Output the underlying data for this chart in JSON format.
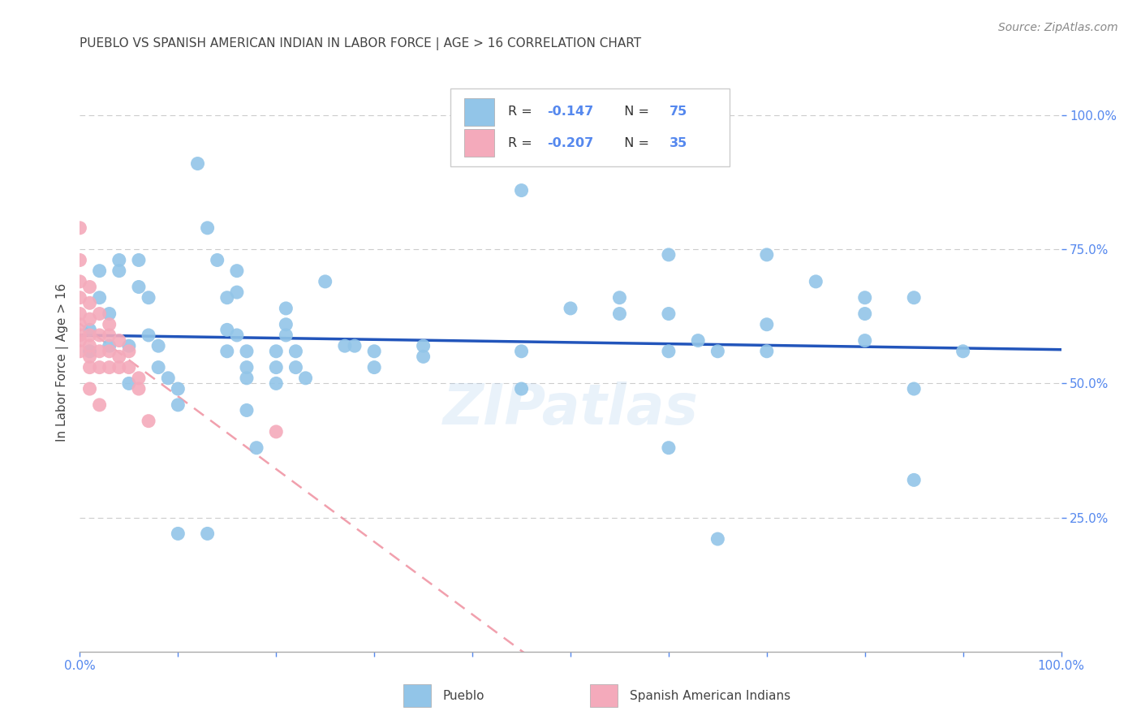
{
  "title": "PUEBLO VS SPANISH AMERICAN INDIAN IN LABOR FORCE | AGE > 16 CORRELATION CHART",
  "source": "Source: ZipAtlas.com",
  "ylabel": "In Labor Force | Age > 16",
  "watermark": "ZIPatlas",
  "y_tick_labels_right": [
    "100.0%",
    "75.0%",
    "50.0%",
    "25.0%"
  ],
  "y_tick_vals": [
    1.0,
    0.75,
    0.5,
    0.25
  ],
  "xlim": [
    0.0,
    1.0
  ],
  "ylim": [
    0.0,
    1.08
  ],
  "blue_color": "#92C5E8",
  "pink_color": "#F4AABB",
  "line_blue": "#2255BB",
  "line_pink": "#EE8899",
  "legend_label_blue": "Pueblo",
  "legend_label_pink": "Spanish American Indians",
  "R_blue": -0.147,
  "N_blue": 75,
  "R_pink": -0.207,
  "N_pink": 35,
  "blue_points": [
    [
      0.01,
      0.6
    ],
    [
      0.01,
      0.56
    ],
    [
      0.02,
      0.66
    ],
    [
      0.02,
      0.71
    ],
    [
      0.03,
      0.63
    ],
    [
      0.03,
      0.57
    ],
    [
      0.04,
      0.73
    ],
    [
      0.04,
      0.71
    ],
    [
      0.05,
      0.5
    ],
    [
      0.05,
      0.57
    ],
    [
      0.06,
      0.73
    ],
    [
      0.06,
      0.68
    ],
    [
      0.07,
      0.66
    ],
    [
      0.07,
      0.59
    ],
    [
      0.08,
      0.57
    ],
    [
      0.08,
      0.53
    ],
    [
      0.09,
      0.51
    ],
    [
      0.1,
      0.49
    ],
    [
      0.1,
      0.46
    ],
    [
      0.1,
      0.22
    ],
    [
      0.12,
      0.91
    ],
    [
      0.13,
      0.79
    ],
    [
      0.14,
      0.73
    ],
    [
      0.15,
      0.66
    ],
    [
      0.15,
      0.6
    ],
    [
      0.15,
      0.56
    ],
    [
      0.16,
      0.71
    ],
    [
      0.16,
      0.67
    ],
    [
      0.16,
      0.59
    ],
    [
      0.17,
      0.56
    ],
    [
      0.17,
      0.53
    ],
    [
      0.17,
      0.51
    ],
    [
      0.17,
      0.45
    ],
    [
      0.18,
      0.38
    ],
    [
      0.2,
      0.56
    ],
    [
      0.2,
      0.53
    ],
    [
      0.2,
      0.5
    ],
    [
      0.21,
      0.64
    ],
    [
      0.21,
      0.61
    ],
    [
      0.21,
      0.59
    ],
    [
      0.22,
      0.56
    ],
    [
      0.22,
      0.53
    ],
    [
      0.23,
      0.51
    ],
    [
      0.25,
      0.69
    ],
    [
      0.27,
      0.57
    ],
    [
      0.28,
      0.57
    ],
    [
      0.3,
      0.56
    ],
    [
      0.3,
      0.53
    ],
    [
      0.35,
      0.57
    ],
    [
      0.35,
      0.55
    ],
    [
      0.45,
      0.86
    ],
    [
      0.45,
      0.56
    ],
    [
      0.45,
      0.49
    ],
    [
      0.5,
      0.64
    ],
    [
      0.55,
      0.66
    ],
    [
      0.55,
      0.63
    ],
    [
      0.6,
      0.74
    ],
    [
      0.6,
      0.63
    ],
    [
      0.6,
      0.56
    ],
    [
      0.63,
      0.58
    ],
    [
      0.65,
      0.56
    ],
    [
      0.7,
      0.74
    ],
    [
      0.7,
      0.61
    ],
    [
      0.7,
      0.56
    ],
    [
      0.75,
      0.69
    ],
    [
      0.8,
      0.66
    ],
    [
      0.8,
      0.63
    ],
    [
      0.8,
      0.58
    ],
    [
      0.85,
      0.66
    ],
    [
      0.85,
      0.49
    ],
    [
      0.9,
      0.56
    ],
    [
      0.85,
      0.32
    ],
    [
      0.6,
      0.38
    ],
    [
      0.65,
      0.21
    ],
    [
      0.13,
      0.22
    ]
  ],
  "pink_points": [
    [
      0.0,
      0.79
    ],
    [
      0.0,
      0.73
    ],
    [
      0.0,
      0.69
    ],
    [
      0.0,
      0.66
    ],
    [
      0.0,
      0.63
    ],
    [
      0.0,
      0.61
    ],
    [
      0.0,
      0.59
    ],
    [
      0.0,
      0.58
    ],
    [
      0.0,
      0.56
    ],
    [
      0.01,
      0.68
    ],
    [
      0.01,
      0.65
    ],
    [
      0.01,
      0.62
    ],
    [
      0.01,
      0.59
    ],
    [
      0.01,
      0.57
    ],
    [
      0.01,
      0.55
    ],
    [
      0.01,
      0.53
    ],
    [
      0.01,
      0.49
    ],
    [
      0.02,
      0.63
    ],
    [
      0.02,
      0.59
    ],
    [
      0.02,
      0.56
    ],
    [
      0.02,
      0.53
    ],
    [
      0.02,
      0.46
    ],
    [
      0.03,
      0.61
    ],
    [
      0.03,
      0.59
    ],
    [
      0.03,
      0.56
    ],
    [
      0.03,
      0.53
    ],
    [
      0.04,
      0.58
    ],
    [
      0.04,
      0.55
    ],
    [
      0.04,
      0.53
    ],
    [
      0.05,
      0.56
    ],
    [
      0.05,
      0.53
    ],
    [
      0.06,
      0.51
    ],
    [
      0.06,
      0.49
    ],
    [
      0.07,
      0.43
    ],
    [
      0.2,
      0.41
    ]
  ],
  "title_fontsize": 11,
  "source_fontsize": 10,
  "axis_label_fontsize": 11,
  "tick_fontsize": 11,
  "watermark_fontsize": 50,
  "background_color": "#FFFFFF",
  "grid_color": "#CCCCCC",
  "title_color": "#444444",
  "right_tick_color": "#5588EE",
  "bottom_tick_color": "#5588EE",
  "source_color": "#888888"
}
